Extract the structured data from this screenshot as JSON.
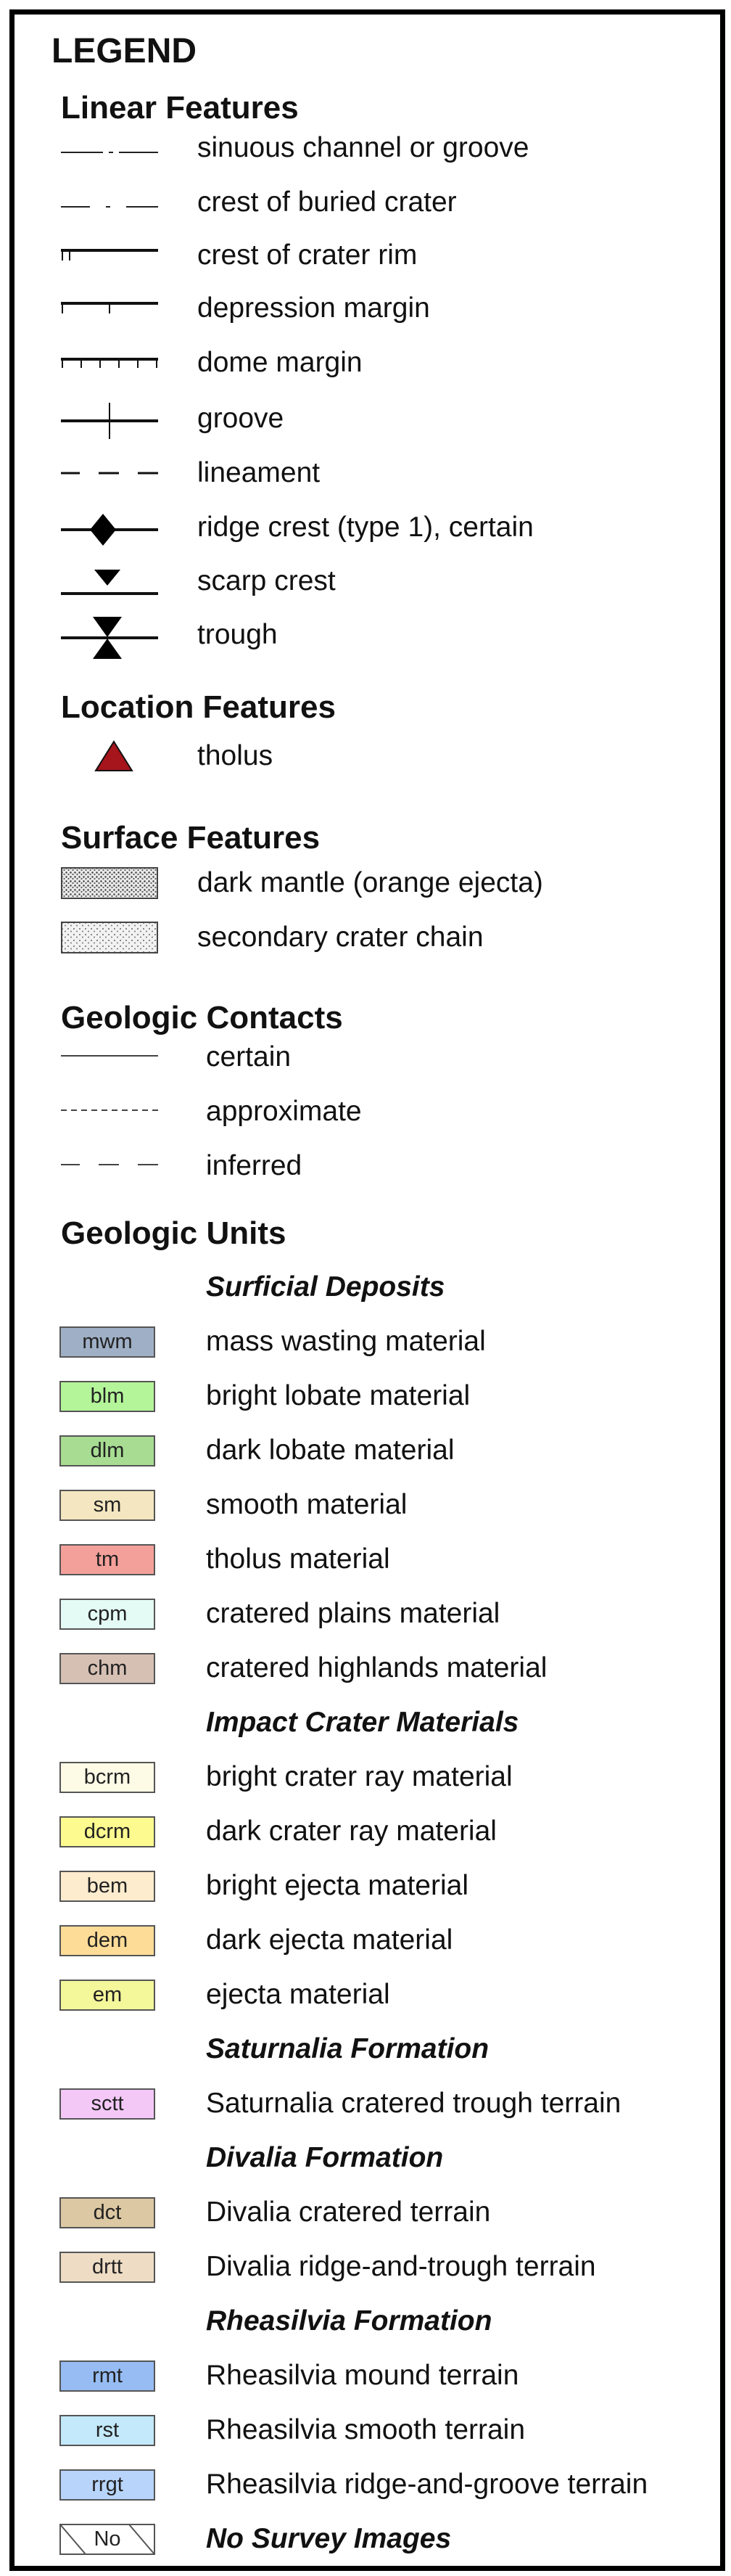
{
  "legend_title": "LEGEND",
  "linear": {
    "heading": "Linear Features",
    "items": [
      {
        "label": "sinuous channel or groove"
      },
      {
        "label": "crest of buried crater"
      },
      {
        "label": "crest of crater rim"
      },
      {
        "label": "depression margin"
      },
      {
        "label": "dome margin"
      },
      {
        "label": "groove"
      },
      {
        "label": "lineament"
      },
      {
        "label": "ridge crest (type 1), certain"
      },
      {
        "label": "scarp crest"
      },
      {
        "label": "trough"
      }
    ]
  },
  "location": {
    "heading": "Location Features",
    "items": [
      {
        "label": "tholus",
        "color": "#a6141c"
      }
    ]
  },
  "surface": {
    "heading": "Surface Features",
    "items": [
      {
        "label": "dark mantle (orange ejecta)"
      },
      {
        "label": "secondary crater chain"
      }
    ]
  },
  "contacts": {
    "heading": "Geologic Contacts",
    "items": [
      {
        "label": "certain"
      },
      {
        "label": "approximate"
      },
      {
        "label": "inferred"
      }
    ]
  },
  "units": {
    "heading": "Geologic Units",
    "groups": [
      {
        "name": "Surficial Deposits",
        "items": [
          {
            "code": "mwm",
            "label": "mass wasting material",
            "color": "#9fb0c6"
          },
          {
            "code": "blm",
            "label": "bright lobate material",
            "color": "#b5f59a"
          },
          {
            "code": "dlm",
            "label": "dark lobate material",
            "color": "#a7dc92"
          },
          {
            "code": "sm",
            "label": "smooth material",
            "color": "#f4e6c0"
          },
          {
            "code": "tm",
            "label": "tholus material",
            "color": "#f4a09a"
          },
          {
            "code": "cpm",
            "label": "cratered plains material",
            "color": "#e3fbf4"
          },
          {
            "code": "chm",
            "label": "cratered highlands material",
            "color": "#d6c0b4"
          }
        ]
      },
      {
        "name": "Impact Crater Materials",
        "items": [
          {
            "code": "bcrm",
            "label": "bright crater ray material",
            "color": "#fdfbe6"
          },
          {
            "code": "dcrm",
            "label": "dark crater ray material",
            "color": "#fdfb90"
          },
          {
            "code": "bem",
            "label": "bright ejecta material",
            "color": "#fdecce"
          },
          {
            "code": "dem",
            "label": "dark ejecta material",
            "color": "#fddc98"
          },
          {
            "code": "em",
            "label": "ejecta material",
            "color": "#f4f79a"
          }
        ]
      },
      {
        "name": "Saturnalia Formation",
        "items": [
          {
            "code": "sctt",
            "label": "Saturnalia cratered trough terrain",
            "color": "#f3c8f7"
          }
        ]
      },
      {
        "name": "Divalia Formation",
        "items": [
          {
            "code": "dct",
            "label": "Divalia cratered terrain",
            "color": "#dcc8a2"
          },
          {
            "code": "drtt",
            "label": "Divalia ridge-and-trough terrain",
            "color": "#eedcc5"
          }
        ]
      },
      {
        "name": "Rheasilvia Formation",
        "items": [
          {
            "code": "rmt",
            "label": "Rheasilvia mound terrain",
            "color": "#96bcf3"
          },
          {
            "code": "rst",
            "label": "Rheasilvia smooth terrain",
            "color": "#c3e9fb"
          },
          {
            "code": "rrgt",
            "label": "Rheasilvia ridge-and-groove terrain",
            "color": "#b8d4fb"
          }
        ]
      }
    ],
    "no_survey": {
      "code": "No",
      "label": "No Survey Images"
    }
  }
}
